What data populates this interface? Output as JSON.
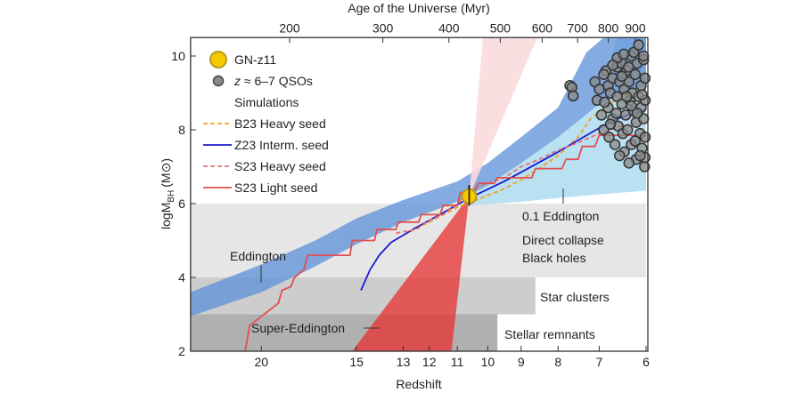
{
  "chart_data": {
    "type": "scatter",
    "xlabel": "Redshift",
    "x2label": "Age of the Universe (Myr)",
    "ylabel": "logM",
    "ylabel_sub": "BH",
    "ylabel_unit": "(M⊙)",
    "xlim": [
      24.7,
      6
    ],
    "ylim": [
      2,
      10.5
    ],
    "xscale": "log(1+z)",
    "x2scale": "log",
    "xticks": [
      20,
      15,
      13,
      12,
      11,
      10,
      9,
      8,
      7,
      6
    ],
    "x2ticks": [
      200,
      300,
      400,
      500,
      600,
      700,
      800,
      900
    ],
    "yticks": [
      2,
      4,
      6,
      8,
      10
    ],
    "grid": false,
    "legend_placement": "top-left",
    "legend": {
      "gnz11": "GN-z11",
      "qso_z": "z",
      "qso_rest": " ≈ 6–7 QSOs",
      "simulations": "Simulations",
      "b23": "B23 Heavy seed",
      "z23": "Z23 Interm. seed",
      "s23h": "S23 Heavy seed",
      "s23l": "S23 Light seed"
    },
    "colors": {
      "gnz11": "#f5c800",
      "qso": "#8a8a8a",
      "b23": "#f0a020",
      "z23": "#1a1ad0",
      "s23h": "#e87070",
      "s23l": "#e05050",
      "eddington": "#5b8fd8",
      "edd01": "#aedcf0",
      "super_edd": "#e83030",
      "cone_up": "#fadadd",
      "direct_collapse": "#e6e6e6",
      "star_clusters": "#cdcdcd",
      "stellar_remnants": "#b0b0b0"
    },
    "annotations": {
      "eddington": "Eddington",
      "edd01": "0.1 Eddington",
      "dc1": "Direct collapse",
      "dc2": "Black holes",
      "star_clusters": "Star clusters",
      "stellar_remnants": "Stellar remnants",
      "super_edd": "Super-Eddington"
    },
    "regions": {
      "direct_collapse": {
        "logM": [
          4,
          6
        ],
        "z_min": 6
      },
      "star_clusters": {
        "logM": [
          3,
          4
        ],
        "z_min": 8.6
      },
      "stellar_remnants": {
        "logM": [
          2,
          3
        ],
        "z_min": 9.7
      }
    },
    "gnz11": {
      "z": 10.6,
      "logM": 6.2,
      "err": [
        5.95,
        6.5
      ]
    },
    "eddington_band": {
      "lower": [
        [
          24.7,
          2.95
        ],
        [
          20,
          3.6
        ],
        [
          17,
          4.3
        ],
        [
          15,
          4.9
        ],
        [
          13,
          5.5
        ],
        [
          11,
          6.05
        ],
        [
          10,
          6.5
        ],
        [
          9,
          7.1
        ],
        [
          8,
          7.8
        ],
        [
          7,
          8.7
        ],
        [
          6,
          9.2
        ]
      ],
      "upper": [
        [
          24.7,
          3.6
        ],
        [
          20,
          4.35
        ],
        [
          17,
          5.0
        ],
        [
          15,
          5.6
        ],
        [
          13,
          6.1
        ],
        [
          11,
          6.6
        ],
        [
          10,
          7.1
        ],
        [
          9,
          7.8
        ],
        [
          8,
          8.6
        ],
        [
          7.3,
          10.1
        ],
        [
          6.9,
          10.5
        ],
        [
          6,
          10.5
        ]
      ]
    },
    "edd01_band": {
      "upper": [
        [
          10.6,
          6.2
        ],
        [
          9,
          7.1
        ],
        [
          8,
          7.8
        ],
        [
          7,
          8.7
        ],
        [
          6.6,
          10.5
        ],
        [
          6,
          10.5
        ]
      ],
      "lower": [
        [
          10.6,
          5.95
        ],
        [
          9,
          6.05
        ],
        [
          8,
          6.15
        ],
        [
          7,
          6.25
        ],
        [
          6,
          6.35
        ]
      ]
    },
    "super_eddington_cone": {
      "apex": [
        10.6,
        6.2
      ],
      "bottom_z": [
        15.2,
        11.2
      ],
      "top_z": [
        10.15,
        8.55
      ]
    },
    "series": [
      {
        "name": "B23 Heavy seed",
        "style": "dashed",
        "points": [
          [
            13,
            5.15
          ],
          [
            12,
            5.5
          ],
          [
            11,
            5.9
          ],
          [
            10.5,
            6.05
          ],
          [
            9.5,
            6.4
          ],
          [
            9,
            6.65
          ],
          [
            8.5,
            6.95
          ],
          [
            8,
            7.3
          ],
          [
            7.5,
            7.8
          ],
          [
            7.2,
            8.3
          ],
          [
            6.9,
            8.6
          ],
          [
            6.6,
            8.85
          ],
          [
            6.3,
            9.0
          ],
          [
            6,
            9.1
          ]
        ]
      },
      {
        "name": "Z23 Interm. seed",
        "style": "solid",
        "points": [
          [
            14.8,
            3.65
          ],
          [
            14.4,
            4.2
          ],
          [
            14,
            4.6
          ],
          [
            13.5,
            4.95
          ],
          [
            12.5,
            5.35
          ],
          [
            11.5,
            5.75
          ],
          [
            10.6,
            6.15
          ],
          [
            9.5,
            6.6
          ],
          [
            9,
            6.85
          ],
          [
            8,
            7.4
          ],
          [
            7,
            8.05
          ],
          [
            6.5,
            8.35
          ],
          [
            6,
            8.55
          ]
        ]
      },
      {
        "name": "S23 Heavy seed",
        "style": "dashed",
        "points": [
          [
            13.3,
            5.2
          ],
          [
            12.5,
            5.3
          ],
          [
            12,
            5.55
          ],
          [
            11.5,
            5.7
          ],
          [
            11,
            6.0
          ],
          [
            10.5,
            6.4
          ],
          [
            9.5,
            6.7
          ],
          [
            9,
            7.0
          ],
          [
            8.5,
            7.2
          ],
          [
            8,
            7.45
          ],
          [
            7.5,
            7.65
          ],
          [
            7,
            7.9
          ],
          [
            6.5,
            8.1
          ],
          [
            6,
            8.25
          ]
        ]
      },
      {
        "name": "S23 Light seed",
        "style": "solid",
        "points": [
          [
            21,
            2
          ],
          [
            20.7,
            2.7
          ],
          [
            19,
            3.3
          ],
          [
            18.8,
            3.65
          ],
          [
            18.3,
            3.75
          ],
          [
            18.1,
            4.0
          ],
          [
            17.6,
            4.2
          ],
          [
            17.4,
            4.6
          ],
          [
            15.3,
            4.6
          ],
          [
            15.2,
            5.0
          ],
          [
            14.2,
            5.0
          ],
          [
            14.1,
            5.3
          ],
          [
            13.3,
            5.3
          ],
          [
            13.2,
            5.5
          ],
          [
            12.4,
            5.5
          ],
          [
            12.3,
            5.7
          ],
          [
            11.6,
            5.7
          ],
          [
            11.5,
            5.95
          ],
          [
            11.0,
            5.95
          ],
          [
            10.9,
            6.3
          ],
          [
            10.4,
            6.35
          ],
          [
            10.3,
            6.55
          ],
          [
            9.8,
            6.55
          ],
          [
            9.7,
            6.7
          ],
          [
            8.7,
            6.7
          ],
          [
            8.6,
            6.95
          ],
          [
            7.9,
            6.95
          ],
          [
            7.8,
            7.2
          ],
          [
            7.5,
            7.2
          ],
          [
            7.4,
            7.55
          ],
          [
            7.1,
            7.55
          ],
          [
            7.0,
            7.85
          ],
          [
            6.7,
            7.85
          ],
          [
            6.6,
            7.85
          ],
          [
            6,
            7.85
          ]
        ]
      }
    ],
    "qsos": [
      [
        7.7,
        9.2
      ],
      [
        7.65,
        9.15
      ],
      [
        7.62,
        8.92
      ],
      [
        7.1,
        9.3
      ],
      [
        7.05,
        8.8
      ],
      [
        7.0,
        9.1
      ],
      [
        6.95,
        8.4
      ],
      [
        6.9,
        8.0
      ],
      [
        6.85,
        9.6
      ],
      [
        6.8,
        9.2
      ],
      [
        6.8,
        8.6
      ],
      [
        6.78,
        7.8
      ],
      [
        6.75,
        9.0
      ],
      [
        6.7,
        9.4
      ],
      [
        6.7,
        8.3
      ],
      [
        6.65,
        7.6
      ],
      [
        6.6,
        9.7
      ],
      [
        6.6,
        8.9
      ],
      [
        6.58,
        8.1
      ],
      [
        6.55,
        9.3
      ],
      [
        6.5,
        9.8
      ],
      [
        6.5,
        8.7
      ],
      [
        6.48,
        7.9
      ],
      [
        6.45,
        9.1
      ],
      [
        6.42,
        8.4
      ],
      [
        6.4,
        9.6
      ],
      [
        6.38,
        8.0
      ],
      [
        6.35,
        9.3
      ],
      [
        6.33,
        8.8
      ],
      [
        6.3,
        10.0
      ],
      [
        6.3,
        7.6
      ],
      [
        6.28,
        9.0
      ],
      [
        6.25,
        8.5
      ],
      [
        6.22,
        9.5
      ],
      [
        6.2,
        8.2
      ],
      [
        6.2,
        7.2
      ],
      [
        6.18,
        9.8
      ],
      [
        6.15,
        8.9
      ],
      [
        6.12,
        7.9
      ],
      [
        6.1,
        9.2
      ],
      [
        6.1,
        8.6
      ],
      [
        6.08,
        7.5
      ],
      [
        6.05,
        9.9
      ],
      [
        6.05,
        8.3
      ],
      [
        6.03,
        7.0
      ],
      [
        6.02,
        9.4
      ],
      [
        6.0,
        8.8
      ],
      [
        6.0,
        7.8
      ],
      [
        6.25,
        10.1
      ],
      [
        6.15,
        10.3
      ],
      [
        6.05,
        10.0
      ],
      [
        6.4,
        8.9
      ],
      [
        6.45,
        7.4
      ],
      [
        6.55,
        7.3
      ],
      [
        6.35,
        7.1
      ],
      [
        6.6,
        9.95
      ],
      [
        6.7,
        9.75
      ],
      [
        6.9,
        9.5
      ],
      [
        6.3,
        8.65
      ],
      [
        6.18,
        8.45
      ],
      [
        6.08,
        8.95
      ],
      [
        6.5,
        9.45
      ],
      [
        6.62,
        8.45
      ],
      [
        6.75,
        8.15
      ],
      [
        6.88,
        8.75
      ],
      [
        6.02,
        7.25
      ],
      [
        6.12,
        7.3
      ],
      [
        6.22,
        7.7
      ],
      [
        6.36,
        9.7
      ],
      [
        6.46,
        10.05
      ]
    ]
  }
}
